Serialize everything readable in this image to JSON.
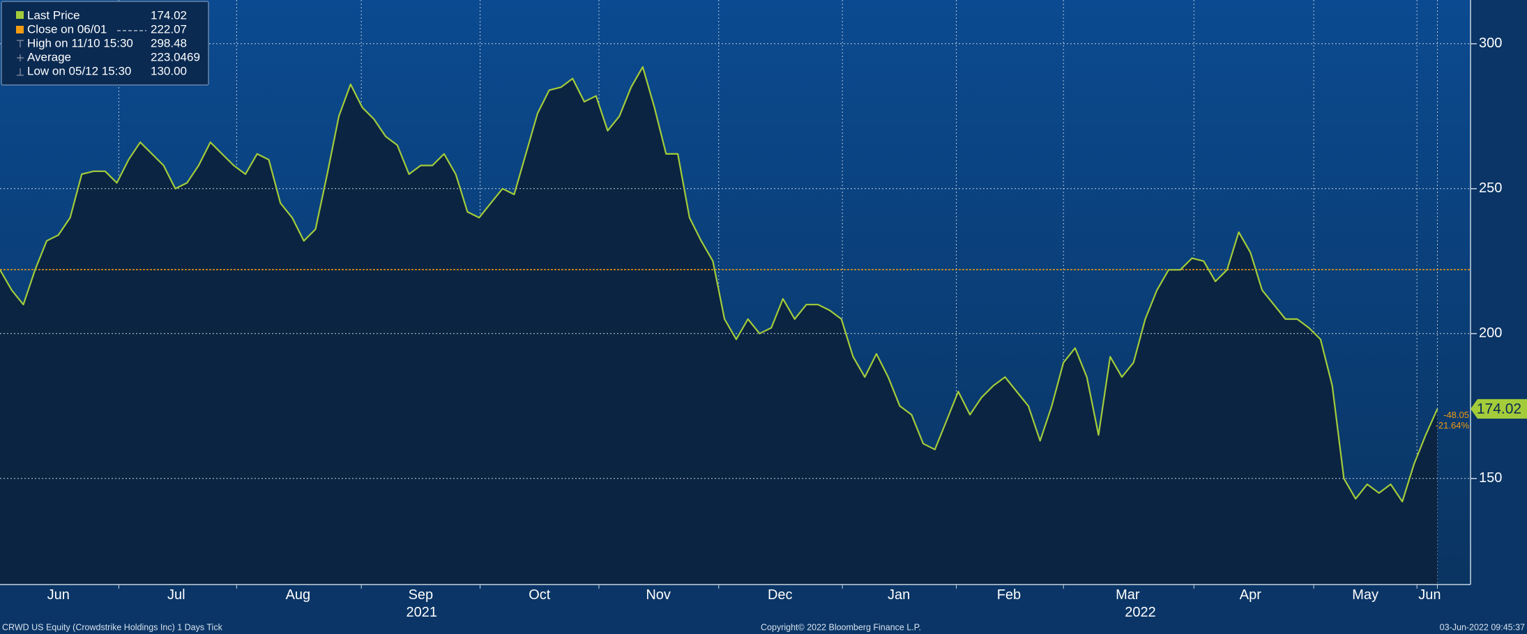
{
  "chart_data": {
    "type": "line",
    "series": [
      {
        "name": "Last Price",
        "color": "#a4cc3a",
        "values": [
          222,
          215,
          210,
          222,
          232,
          234,
          240,
          255,
          256,
          256,
          252,
          260,
          266,
          262,
          258,
          250,
          252,
          258,
          266,
          262,
          258,
          255,
          262,
          260,
          245,
          240,
          232,
          236,
          255,
          275,
          286,
          278,
          274,
          268,
          265,
          255,
          258,
          258,
          262,
          255,
          242,
          240,
          245,
          250,
          248,
          262,
          276,
          284,
          285,
          288,
          280,
          282,
          270,
          275,
          285,
          292,
          278,
          262,
          262,
          240,
          232,
          225,
          205,
          198,
          205,
          200,
          202,
          212,
          205,
          210,
          210,
          208,
          205,
          192,
          185,
          193,
          185,
          175,
          172,
          162,
          160,
          170,
          180,
          172,
          178,
          182,
          185,
          180,
          175,
          163,
          175,
          190,
          195,
          185,
          165,
          192,
          185,
          190,
          205,
          215,
          222,
          222,
          226,
          225,
          218,
          222,
          235,
          228,
          215,
          210,
          205,
          205,
          202,
          198,
          182,
          150,
          143,
          148,
          145,
          148,
          142,
          155,
          165,
          174.02
        ]
      }
    ],
    "ylim": [
      113.4,
      315.1
    ],
    "yticks": [
      150,
      200,
      250,
      300
    ],
    "grid": true,
    "x_labels": [
      "Jun",
      "Jul",
      "Aug",
      "Sep",
      "Oct",
      "Nov",
      "Dec",
      "Jan",
      "Feb",
      "Mar",
      "Apr",
      "May",
      "Jun"
    ],
    "year_labels": [
      "2021",
      "2022"
    ],
    "stats": [
      {
        "name": "Close on 06/01",
        "value": 222.07,
        "color": "#f39c12"
      },
      {
        "name": "High on 11/10 15:30",
        "value": 298.48
      },
      {
        "name": "Average",
        "value": 223.0469
      },
      {
        "name": "Low on 05/12 15:30",
        "value": 130,
        "value_label": "130.00"
      }
    ],
    "annotations": [
      "-48.05",
      "-21.64%"
    ],
    "footer": {
      "left": "CRWD US Equity (Crowdstrike Holdings Inc) 1 Days  Tick",
      "center": "Copyright© 2022 Bloomberg Finance L.P.",
      "right": "03-Jun-2022 09:45:37"
    }
  }
}
